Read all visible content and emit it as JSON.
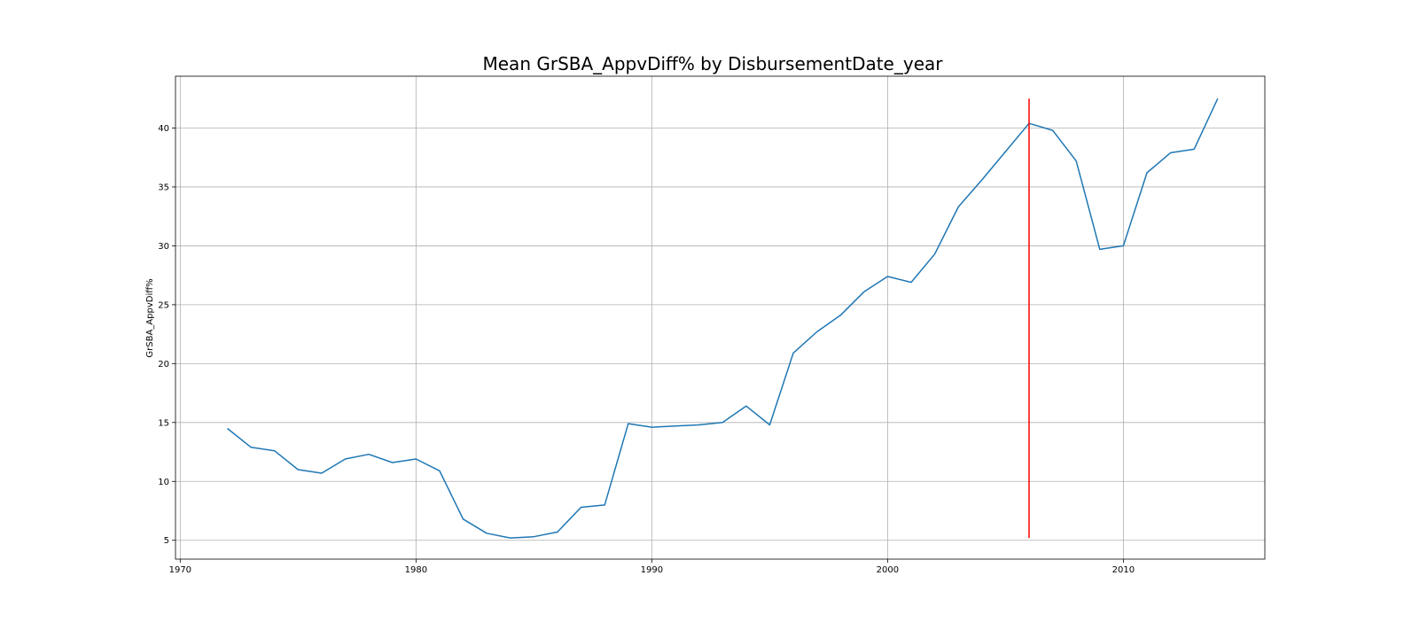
{
  "chart_data": {
    "type": "line",
    "title": "Mean GrSBA_AppvDiff% by DisbursementDate_year",
    "xlabel": "",
    "ylabel": "GrSBA_AppvDiff%",
    "xlim": [
      1969.8,
      2016
    ],
    "ylim": [
      3.4,
      44.4
    ],
    "xticks": [
      1970,
      1980,
      1990,
      2000,
      2010
    ],
    "yticks": [
      5,
      10,
      15,
      20,
      25,
      30,
      35,
      40
    ],
    "grid": true,
    "colors": {
      "line": "#1f77b4",
      "marker_line": "#ff0000"
    },
    "x": [
      1972,
      1973,
      1974,
      1975,
      1976,
      1977,
      1978,
      1979,
      1980,
      1981,
      1982,
      1983,
      1984,
      1985,
      1986,
      1987,
      1988,
      1989,
      1990,
      1991,
      1992,
      1993,
      1994,
      1995,
      1996,
      1997,
      1998,
      1999,
      2000,
      2001,
      2002,
      2003,
      2004,
      2005,
      2006,
      2007,
      2008,
      2009,
      2010,
      2011,
      2012,
      2013,
      2014
    ],
    "series": [
      {
        "values": [
          14.5,
          12.9,
          12.6,
          11.0,
          10.7,
          11.9,
          12.3,
          11.6,
          11.9,
          10.9,
          6.8,
          5.6,
          5.2,
          5.3,
          5.7,
          7.8,
          8.0,
          14.9,
          14.6,
          14.7,
          14.8,
          15.0,
          16.4,
          14.8,
          20.9,
          22.7,
          24.1,
          26.1,
          27.4,
          26.9,
          29.3,
          33.3,
          35.6,
          38.0,
          40.4,
          39.8,
          37.2,
          29.7,
          30.0,
          36.2,
          37.9,
          38.2,
          42.5
        ]
      }
    ],
    "vline": {
      "x": 2006,
      "ymin": 5.2,
      "ymax": 42.5
    }
  }
}
